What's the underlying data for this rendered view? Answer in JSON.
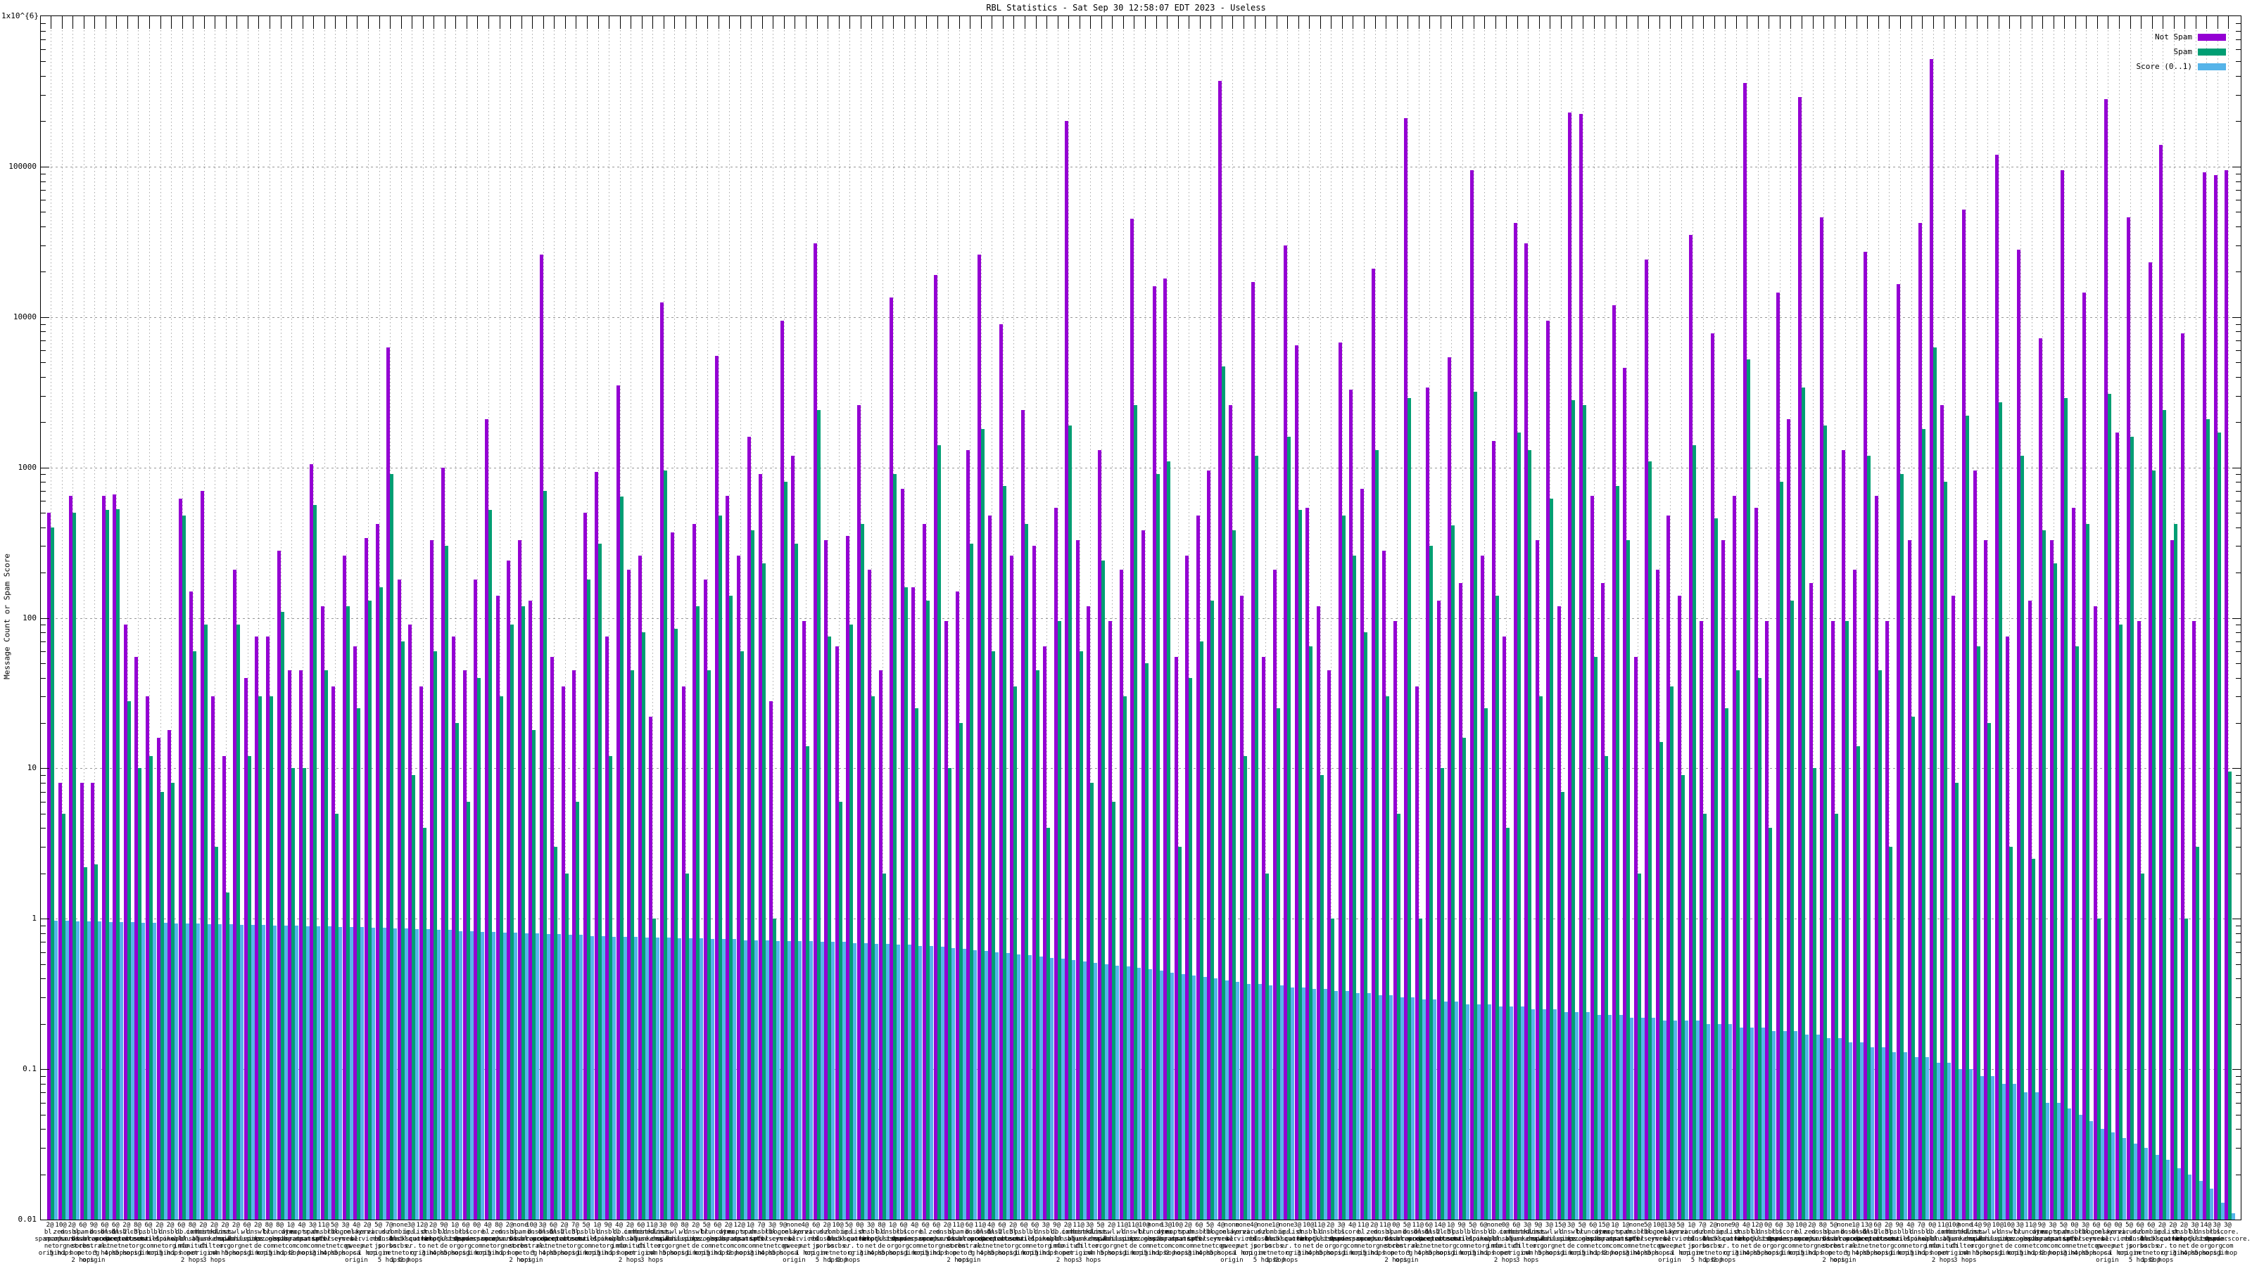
{
  "window": {
    "title": "RBL Statistics - Sat Sep 30 12:58:07 EDT 2023 - Useless"
  },
  "chart_data": {
    "type": "bar",
    "title": "RBL Statistics - Sat Sep 30 12:58:07 EDT 2023 - Useless",
    "xlabel": "",
    "ylabel": "Message Count or Spam Score",
    "y_scale": "log10",
    "ylim": [
      0.01,
      1000000
    ],
    "grid": true,
    "legend_position": "top-right-inside",
    "y_ticks": [
      {
        "label": "1x10^{6}",
        "value": 1000000
      },
      {
        "label": "100000",
        "value": 100000
      },
      {
        "label": "10000",
        "value": 10000
      },
      {
        "label": "1000",
        "value": 1000
      },
      {
        "label": "100",
        "value": 100
      },
      {
        "label": "10",
        "value": 10
      },
      {
        "label": "1",
        "value": 1
      },
      {
        "label": "0.1",
        "value": 0.1
      },
      {
        "label": "0.01",
        "value": 0.01
      }
    ],
    "series": [
      {
        "name": "Not Spam",
        "color": "#9400d3"
      },
      {
        "name": "Spam",
        "color": "#009e73"
      },
      {
        "name": "Score (0..1)",
        "color": "#56b4e9"
      }
    ],
    "x_labels": {
      "pattern": "count|rbl|hops  (| separates stacked label lines)",
      "counts": [
        "2@",
        "10@",
        "2@",
        "6@",
        "9@",
        "6@",
        "6@",
        "2@",
        "8@",
        "6@",
        "2@",
        "2@",
        "6@",
        "8@",
        "2@",
        "2@",
        "2@",
        "2@",
        "6@",
        "2@",
        "8@",
        "8@",
        "1@",
        "4@",
        "3@",
        "11@",
        "5@",
        "3@",
        "4@",
        "2@",
        "5@",
        "7@",
        "none",
        "3@",
        "12@",
        "2@",
        "9@",
        "1@",
        "6@",
        "0@",
        "4@",
        "8@",
        "2@",
        "none",
        "10@",
        "3@",
        "6@",
        "2@",
        "7@",
        "5@",
        "1@",
        "9@",
        "4@",
        "2@",
        "6@",
        "11@",
        "3@",
        "0@",
        "8@",
        "2@",
        "5@",
        "6@",
        "2@",
        "12@",
        "1@",
        "7@",
        "3@",
        "9@",
        "none",
        "4@",
        "6@",
        "2@",
        "10@",
        "5@",
        "0@",
        "3@",
        "8@",
        "1@",
        "6@",
        "4@",
        "6@",
        "6@",
        "2@",
        "11@",
        "6@",
        "11@",
        "4@",
        "6@",
        "2@",
        "6@",
        "6@",
        "3@",
        "9@",
        "2@",
        "11@",
        "3@",
        "5@",
        "2@",
        "11@",
        "11@",
        "10@",
        "none",
        "13@",
        "10@",
        "2@",
        "6@",
        "5@",
        "4@",
        "none",
        "none",
        "4@",
        "none",
        "1@",
        "none",
        "3@",
        "10@",
        "11@",
        "2@",
        "3@",
        "4@",
        "11@",
        "2@",
        "11@",
        "0@",
        "5@",
        "11@",
        "6@",
        "14@",
        "1@",
        "9@",
        "5@",
        "6@",
        "none",
        "0@",
        "6@",
        "3@",
        "9@",
        "3@",
        "15@",
        "3@",
        "5@",
        "6@",
        "15@",
        "1@",
        "1@",
        "none",
        "5@",
        "10@",
        "13@",
        "5@",
        "1@",
        "7@",
        "2@",
        "none",
        "9@",
        "4@",
        "12@",
        "0@",
        "6@",
        "3@",
        "10@",
        "2@",
        "8@",
        "5@",
        "none",
        "1@",
        "13@",
        "6@",
        "2@",
        "9@",
        "4@",
        "7@",
        "0@",
        "11@",
        "10@",
        "none",
        "14@",
        "9@",
        "10@",
        "10@",
        "3@",
        "11@",
        "9@",
        "3@",
        "5@",
        "0@",
        "3@",
        "6@",
        "6@",
        "0@",
        "5@",
        "6@",
        "6@",
        "2@",
        "2@",
        "2@",
        "3@",
        "14@",
        "3@",
        "3@"
      ],
      "rbl_pool": [
        "bl.|spamcop.|net",
        "zen.|spamhaus.|org",
        "dnsbl.|sorbs.|net",
        "spam.|dnsbl.|sorbs.|net",
        "b.|barracuda|central.|org",
        "dnsbl-1.|uceprotect.|net",
        "dnsbl-2.|uceprotect.|net",
        "dnsbl-3.|uceprotect.|net",
        "cbl.|abuseat.|org",
        "psbl.|surriel.|com",
        "bl.|mailspike.|net",
        "dnsbl.|dronebl.|org",
        "db.|wpbl.|info",
        "ix.|dnsbl.|manitu.|net",
        "combined.|abuse.|ch",
        "hostkarma.|junkemail|filter.|com",
        "list.|dnswl.|org",
        "swl.|spamhaus.|org",
        "wl.|mailspike.|net",
        "dnswl.|inps.|de",
        "bl.|nszones.|com",
        "truncate.|gbudb.|net",
        "dyna.|spamrats.|com",
        "noptr.|spamrats.|com",
        "spam.|spamrats.|com",
        "dnsbl.|spfbl.|net",
        "rbl.|interserver.|net",
        "bogons.|cymru.|com",
        "relays.|bl.|gweep.|ca",
        "korea.|services.|net",
        "virus.|rbl.|jp",
        "dul.|dnsbl.|sorbs.|net",
        "zombie.|dnsbl.|sorbs.|net",
        "ips.|backscatter|er.|org",
        "list.|quorum.|to",
        "dnsbl.|kempt.|net",
        "bl.|blocklist.|de",
        "dnsbl.|justspam.|org",
        "rbl.|0spam.|org",
        "score.|senderscore.|com"
      ],
      "hop_pool": [
        "origin",
        "5 hops",
        "1 hop",
        "2 hops",
        "origin",
        "3 hops",
        "4 hops",
        "5 hops",
        "origin",
        "1 hop"
      ]
    },
    "not_spam": [
      500,
      8,
      650,
      8,
      8,
      650,
      660,
      90,
      55,
      30,
      16,
      18,
      620,
      150,
      700,
      30,
      12,
      210,
      40,
      75,
      75,
      280,
      45,
      45,
      1050,
      120,
      35,
      260,
      65,
      340,
      420,
      6300,
      180,
      90,
      35,
      330,
      1000,
      75,
      45,
      180,
      2100,
      140,
      240,
      330,
      130,
      26000,
      55,
      35,
      45,
      500,
      930,
      75,
      3500,
      210,
      260,
      22,
      12500,
      370,
      35,
      420,
      180,
      5500,
      650,
      260,
      1600,
      900,
      28,
      9500,
      1200,
      95,
      31000,
      330,
      65,
      350,
      2600,
      210,
      45,
      13500,
      720,
      160,
      420,
      19000,
      95,
      150,
      1300,
      26000,
      480,
      9000,
      260,
      2400,
      300,
      65,
      540,
      200000,
      330,
      120,
      1300,
      95,
      210,
      45000,
      380,
      16000,
      18000,
      55,
      260,
      480,
      950,
      370000,
      2600,
      140,
      17000,
      55,
      210,
      30000,
      6500,
      540,
      120,
      45,
      6800,
      3300,
      720,
      21000,
      280,
      95,
      210000,
      35,
      3400,
      130,
      5400,
      170,
      95000,
      260,
      1500,
      75,
      42000,
      31000,
      330,
      9500,
      120,
      230000,
      225000,
      650,
      170,
      12000,
      4600,
      55,
      24000,
      210,
      480,
      140,
      35000,
      95,
      7800,
      330,
      650,
      360000,
      540,
      95,
      14500,
      2100,
      290000,
      170,
      46000,
      95,
      1300,
      210,
      27000,
      650,
      95,
      16500,
      330,
      42000,
      520000,
      2600,
      140,
      52000,
      950,
      330,
      120000,
      75,
      28000,
      130,
      7200,
      330,
      95000,
      540,
      14500,
      120,
      280000,
      1700,
      46000,
      95,
      23000,
      140000,
      330,
      7800,
      95,
      92000,
      88000,
      95000
    ],
    "spam": [
      400,
      5,
      500,
      2.2,
      2.3,
      520,
      530,
      28,
      10,
      12,
      7,
      8,
      480,
      60,
      90,
      3,
      1.5,
      90,
      12,
      30,
      30,
      110,
      10,
      10,
      560,
      45,
      5,
      120,
      25,
      130,
      160,
      900,
      70,
      9,
      4,
      60,
      300,
      20,
      6,
      40,
      520,
      30,
      90,
      120,
      18,
      700,
      3,
      2,
      6,
      180,
      310,
      12,
      640,
      45,
      80,
      1,
      950,
      85,
      2,
      120,
      45,
      480,
      140,
      60,
      380,
      230,
      1,
      800,
      310,
      14,
      2400,
      75,
      6,
      90,
      420,
      30,
      2,
      900,
      160,
      25,
      130,
      1400,
      10,
      20,
      310,
      1800,
      60,
      750,
      35,
      420,
      45,
      4,
      95,
      1900,
      60,
      8,
      240,
      6,
      30,
      2600,
      50,
      900,
      1100,
      3,
      40,
      70,
      130,
      4700,
      380,
      12,
      1200,
      2,
      25,
      1600,
      520,
      65,
      9,
      1,
      480,
      260,
      80,
      1300,
      30,
      5,
      2900,
      1,
      300,
      10,
      410,
      16,
      3200,
      25,
      140,
      4,
      1700,
      1300,
      30,
      620,
      7,
      2800,
      2600,
      55,
      12,
      750,
      330,
      2,
      1100,
      15,
      35,
      9,
      1400,
      5,
      460,
      25,
      45,
      5200,
      40,
      4,
      800,
      130,
      3400,
      10,
      1900,
      5,
      95,
      14,
      1200,
      45,
      3,
      900,
      22,
      1800,
      6300,
      800,
      8,
      2200,
      65,
      20,
      2700,
      3,
      1200,
      2.5,
      380,
      230,
      2900,
      65,
      420,
      1,
      3100,
      90,
      1600,
      2,
      950,
      2400,
      420,
      1,
      3,
      2100,
      1700,
      9.5
    ],
    "score": [
      0.97,
      0.97,
      0.96,
      0.96,
      0.96,
      0.95,
      0.95,
      0.95,
      0.94,
      0.94,
      0.94,
      0.93,
      0.93,
      0.93,
      0.92,
      0.92,
      0.92,
      0.91,
      0.91,
      0.91,
      0.9,
      0.9,
      0.9,
      0.89,
      0.89,
      0.89,
      0.88,
      0.88,
      0.88,
      0.87,
      0.87,
      0.86,
      0.86,
      0.85,
      0.85,
      0.84,
      0.84,
      0.83,
      0.83,
      0.82,
      0.82,
      0.81,
      0.81,
      0.8,
      0.8,
      0.79,
      0.79,
      0.78,
      0.78,
      0.77,
      0.77,
      0.76,
      0.76,
      0.76,
      0.75,
      0.75,
      0.75,
      0.74,
      0.74,
      0.74,
      0.73,
      0.73,
      0.73,
      0.72,
      0.72,
      0.72,
      0.71,
      0.71,
      0.71,
      0.71,
      0.7,
      0.7,
      0.7,
      0.69,
      0.69,
      0.68,
      0.68,
      0.67,
      0.67,
      0.66,
      0.66,
      0.65,
      0.64,
      0.63,
      0.62,
      0.61,
      0.6,
      0.59,
      0.58,
      0.57,
      0.56,
      0.55,
      0.54,
      0.53,
      0.52,
      0.51,
      0.5,
      0.49,
      0.48,
      0.47,
      0.46,
      0.45,
      0.44,
      0.43,
      0.42,
      0.41,
      0.4,
      0.39,
      0.38,
      0.37,
      0.37,
      0.36,
      0.36,
      0.35,
      0.35,
      0.34,
      0.34,
      0.33,
      0.33,
      0.32,
      0.32,
      0.31,
      0.31,
      0.3,
      0.3,
      0.29,
      0.29,
      0.28,
      0.28,
      0.27,
      0.27,
      0.27,
      0.26,
      0.26,
      0.26,
      0.25,
      0.25,
      0.25,
      0.24,
      0.24,
      0.24,
      0.23,
      0.23,
      0.23,
      0.22,
      0.22,
      0.22,
      0.21,
      0.21,
      0.21,
      0.21,
      0.2,
      0.2,
      0.2,
      0.19,
      0.19,
      0.19,
      0.18,
      0.18,
      0.18,
      0.17,
      0.17,
      0.16,
      0.16,
      0.15,
      0.15,
      0.14,
      0.14,
      0.13,
      0.13,
      0.12,
      0.12,
      0.11,
      0.11,
      0.1,
      0.1,
      0.09,
      0.09,
      0.08,
      0.08,
      0.07,
      0.07,
      0.06,
      0.06,
      0.055,
      0.05,
      0.045,
      0.04,
      0.038,
      0.035,
      0.032,
      0.03,
      0.027,
      0.025,
      0.022,
      0.02,
      0.018,
      0.016,
      0.013,
      0.011
    ]
  }
}
